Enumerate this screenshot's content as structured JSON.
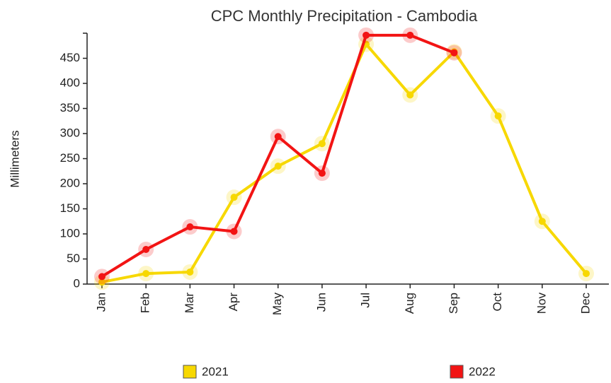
{
  "chart_data": {
    "type": "line",
    "title": "CPC Monthly Precipitation - Cambodia",
    "y_label": "Millimeters",
    "categories": [
      "Jan",
      "Feb",
      "Mar",
      "Apr",
      "May",
      "Jun",
      "Jul",
      "Aug",
      "Sep",
      "Oct",
      "Nov",
      "Dec"
    ],
    "series": [
      {
        "name": "2021",
        "color": "#f7d800",
        "values": [
          4,
          21,
          24,
          173,
          235,
          280,
          478,
          377,
          463,
          335,
          125,
          21
        ]
      },
      {
        "name": "2022",
        "color": "#f21414",
        "values": [
          15,
          69,
          114,
          105,
          294,
          221,
          496,
          496,
          461,
          null,
          null,
          null
        ]
      }
    ],
    "ylim": [
      0,
      500
    ],
    "yticks": [
      0,
      50,
      100,
      150,
      200,
      250,
      300,
      350,
      400,
      450
    ]
  }
}
